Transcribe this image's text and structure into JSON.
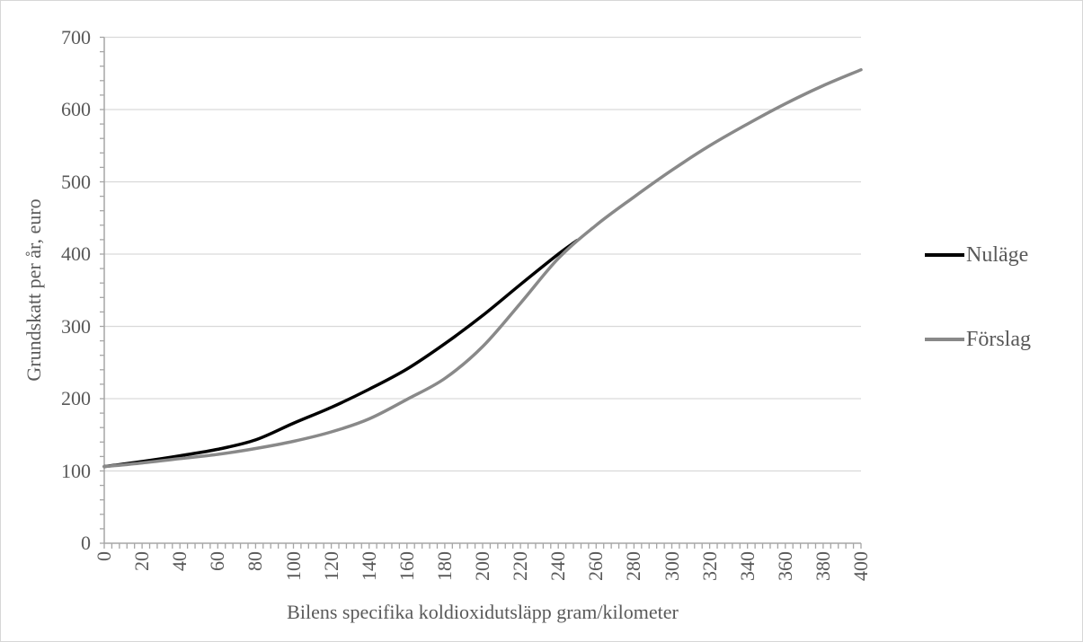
{
  "colors": {
    "gridline": "#d9d9d9",
    "axis_line": "#a6a6a6",
    "tick_mark": "#a6a6a6",
    "label_text": "#595959",
    "series_nulage": "#000000",
    "series_forslag": "#898989",
    "background": "#ffffff",
    "canvas_border": "#d6d6d6"
  },
  "legend": {
    "position": "right",
    "entries": [
      {
        "label": "Nuläge",
        "color": "#000000"
      },
      {
        "label": "Förslag",
        "color": "#898989"
      }
    ]
  },
  "chart_data": {
    "type": "line",
    "title": "",
    "xlabel": "Bilens specifika koldioxidutsläpp gram/kilometer",
    "ylabel": "Grundskatt per år, euro",
    "xlim": [
      0,
      400
    ],
    "ylim": [
      0,
      700
    ],
    "x_ticks": [
      0,
      20,
      40,
      60,
      80,
      100,
      120,
      140,
      160,
      180,
      200,
      220,
      240,
      260,
      280,
      300,
      320,
      340,
      360,
      380,
      400
    ],
    "y_ticks": [
      0,
      100,
      200,
      300,
      400,
      500,
      600,
      700
    ],
    "x_minor_tick_step": 4,
    "y_minor_tick_step": 20,
    "grid": "horizontal-major",
    "legend_position": "right",
    "x_tick_label_rotation": -90,
    "series": [
      {
        "name": "Nuläge",
        "color": "#000000",
        "x": [
          0,
          20,
          40,
          60,
          80,
          100,
          120,
          140,
          160,
          180,
          200,
          220,
          240,
          250
        ],
        "values": [
          106,
          113,
          121,
          130,
          143,
          166,
          188,
          213,
          241,
          276,
          315,
          358,
          400,
          419
        ]
      },
      {
        "name": "Förslag",
        "color": "#898989",
        "x": [
          0,
          20,
          40,
          60,
          80,
          100,
          120,
          140,
          160,
          180,
          200,
          220,
          240,
          260,
          280,
          300,
          320,
          340,
          360,
          380,
          400
        ],
        "values": [
          106,
          111,
          117,
          123,
          131,
          141,
          154,
          172,
          199,
          228,
          272,
          332,
          394,
          440,
          479,
          516,
          550,
          580,
          608,
          633,
          655
        ]
      }
    ]
  }
}
